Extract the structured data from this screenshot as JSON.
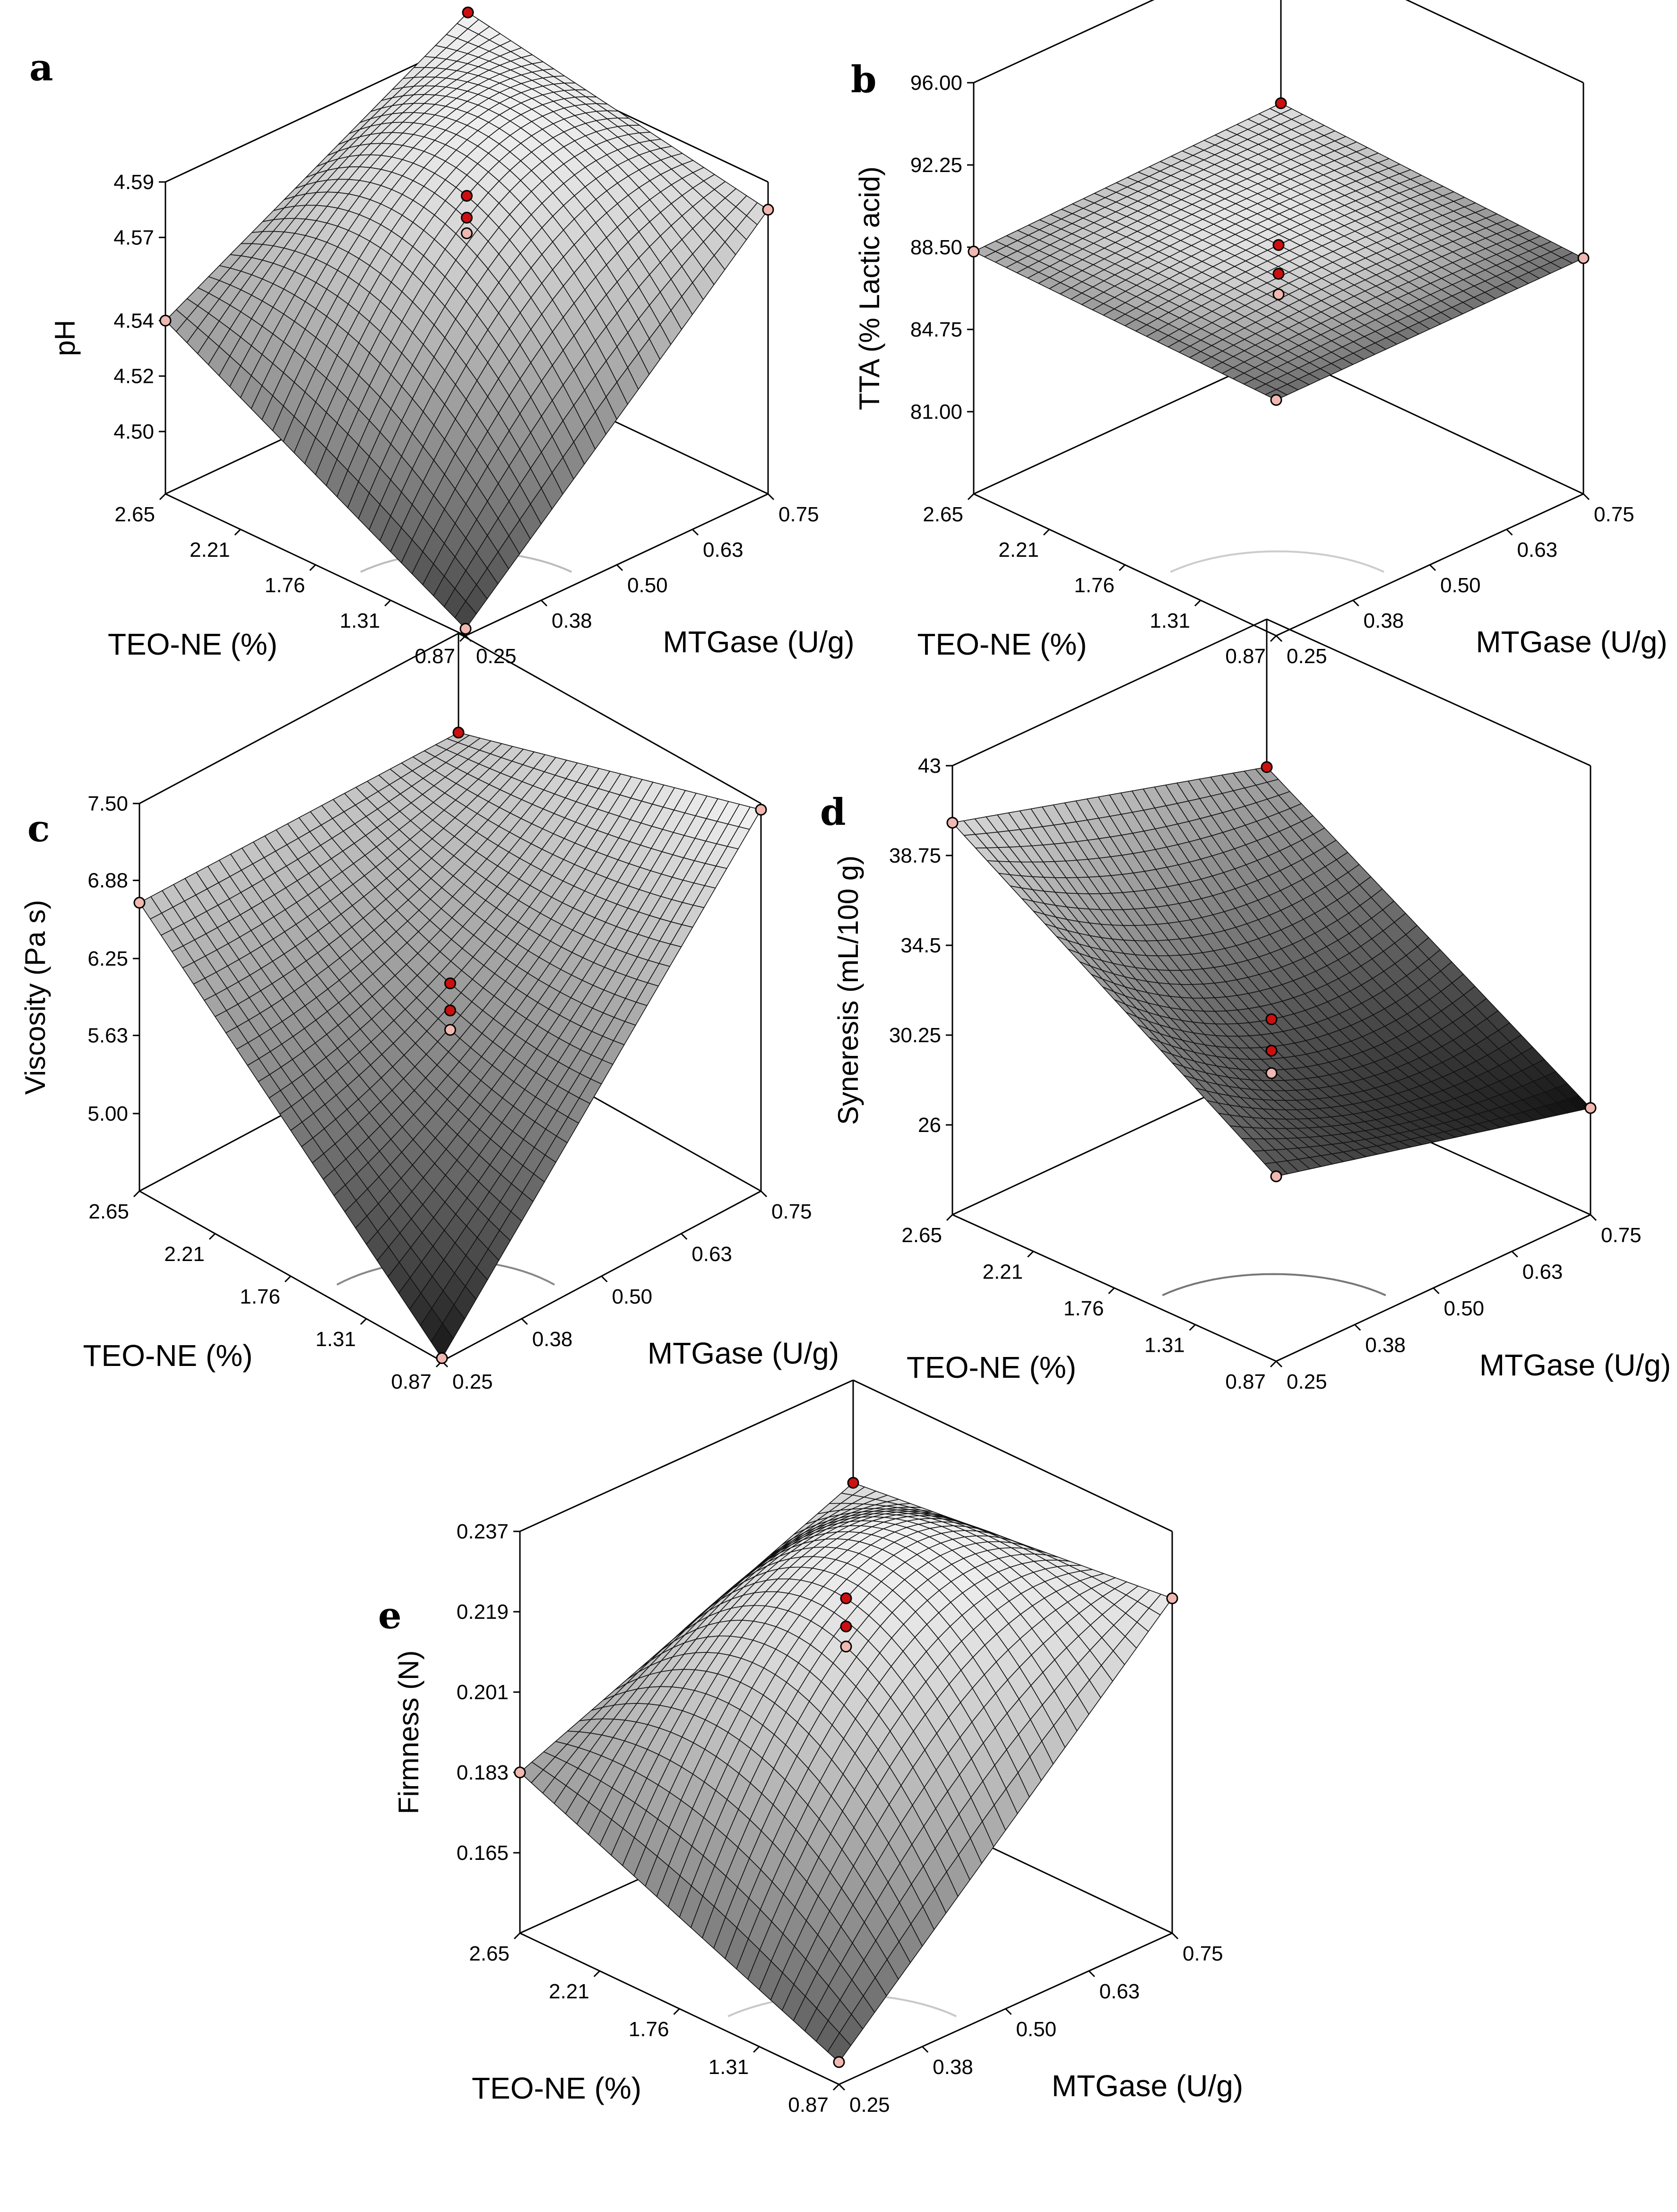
{
  "chart_data": [
    {
      "type": "surface3d",
      "panel": "a",
      "zlabel": "pH",
      "xlabel": "TEO-NE (%)",
      "ylabel": "MTGase (U/g)",
      "x_ticks": [
        "2.65",
        "2.21",
        "1.76",
        "1.31",
        "0.87"
      ],
      "y_ticks": [
        "0.25",
        "0.38",
        "0.50",
        "0.63",
        "0.75"
      ],
      "z_ticks": [
        "4.59",
        "4.57",
        "4.54",
        "4.52",
        "4.50"
      ],
      "corner_values": {
        "xlow_ylow": 4.48,
        "xhigh_ylow": 4.54,
        "xlow_yhigh": 4.58,
        "xhigh_yhigh": 4.6
      },
      "center_value": 4.585,
      "colors": {
        "surface_low": "#3c3c3c",
        "surface_high": "#f2f2f2",
        "point_primary": "#cc1010",
        "point_secondary": "#f0b8b0",
        "contour": "#bbbbbb"
      }
    },
    {
      "type": "surface3d",
      "panel": "b",
      "zlabel": "TTA (% Lactic acid)",
      "xlabel": "TEO-NE (%)",
      "ylabel": "MTGase (U/g)",
      "x_ticks": [
        "2.65",
        "2.21",
        "1.76",
        "1.31",
        "0.87"
      ],
      "y_ticks": [
        "0.25",
        "0.38",
        "0.50",
        "0.63",
        "0.75"
      ],
      "z_ticks": [
        "96.00",
        "92.25",
        "88.50",
        "84.75",
        "81.00"
      ],
      "corner_values": {
        "xlow_ylow": 88.0,
        "xhigh_ylow": 88.3,
        "xlow_yhigh": 88.0,
        "xhigh_yhigh": 88.6
      },
      "center_value": 88.6,
      "colors": {
        "surface_low": "#6a6a6a",
        "surface_high": "#e6e6e6",
        "point_primary": "#cc1010",
        "point_secondary": "#f0b8b0",
        "contour": "#cccccc"
      }
    },
    {
      "type": "surface3d",
      "panel": "c",
      "zlabel": "Viscosity (Pa s)",
      "xlabel": "TEO-NE (%)",
      "ylabel": "MTGase (U/g)",
      "x_ticks": [
        "2.65",
        "2.21",
        "1.76",
        "1.31",
        "0.87"
      ],
      "y_ticks": [
        "0.25",
        "0.38",
        "0.50",
        "0.63",
        "0.75"
      ],
      "z_ticks": [
        "7.50",
        "6.88",
        "6.25",
        "5.63",
        "5.00"
      ],
      "corner_values": {
        "xlow_ylow": 4.4,
        "xhigh_ylow": 6.7,
        "xlow_yhigh": 7.45,
        "xhigh_yhigh": 6.7
      },
      "center_value": 6.05,
      "colors": {
        "surface_low": "#111111",
        "surface_high": "#f4f4f4",
        "point_primary": "#cc1010",
        "point_secondary": "#f0b8b0",
        "contour": "#888888"
      }
    },
    {
      "type": "surface3d",
      "panel": "d",
      "zlabel": "Syneresis (mL/100 g)",
      "xlabel": "TEO-NE (%)",
      "ylabel": "MTGase (U/g)",
      "x_ticks": [
        "2.65",
        "2.21",
        "1.76",
        "1.31",
        "0.87"
      ],
      "y_ticks": [
        "0.25",
        "0.38",
        "0.50",
        "0.63",
        "0.75"
      ],
      "z_ticks": [
        "43",
        "38.75",
        "34.5",
        "30.25",
        "26"
      ],
      "corner_values": {
        "xlow_ylow": 30.5,
        "xhigh_ylow": 40.3,
        "xlow_yhigh": 26.8,
        "xhigh_yhigh": 36.0
      },
      "center_value": 31.0,
      "colors": {
        "surface_low": "#0a0a0a",
        "surface_high": "#d8d8d8",
        "point_primary": "#cc1010",
        "point_secondary": "#f0b8b0",
        "contour": "#777777"
      }
    },
    {
      "type": "surface3d",
      "panel": "e",
      "zlabel": "Firmness (N)",
      "xlabel": "TEO-NE (%)",
      "ylabel": "MTGase (U/g)",
      "x_ticks": [
        "2.65",
        "2.21",
        "1.76",
        "1.31",
        "0.87"
      ],
      "y_ticks": [
        "0.25",
        "0.38",
        "0.50",
        "0.63",
        "0.75"
      ],
      "z_ticks": [
        "0.237",
        "0.219",
        "0.201",
        "0.183",
        "0.165"
      ],
      "corner_values": {
        "xlow_ylow": 0.152,
        "xhigh_ylow": 0.183,
        "xlow_yhigh": 0.222,
        "xhigh_yhigh": 0.214
      },
      "center_value": 0.222,
      "colors": {
        "surface_low": "#555555",
        "surface_high": "#f2f2f2",
        "point_primary": "#cc1010",
        "point_secondary": "#f0b8b0",
        "contour": "#c8c8c8"
      }
    }
  ]
}
